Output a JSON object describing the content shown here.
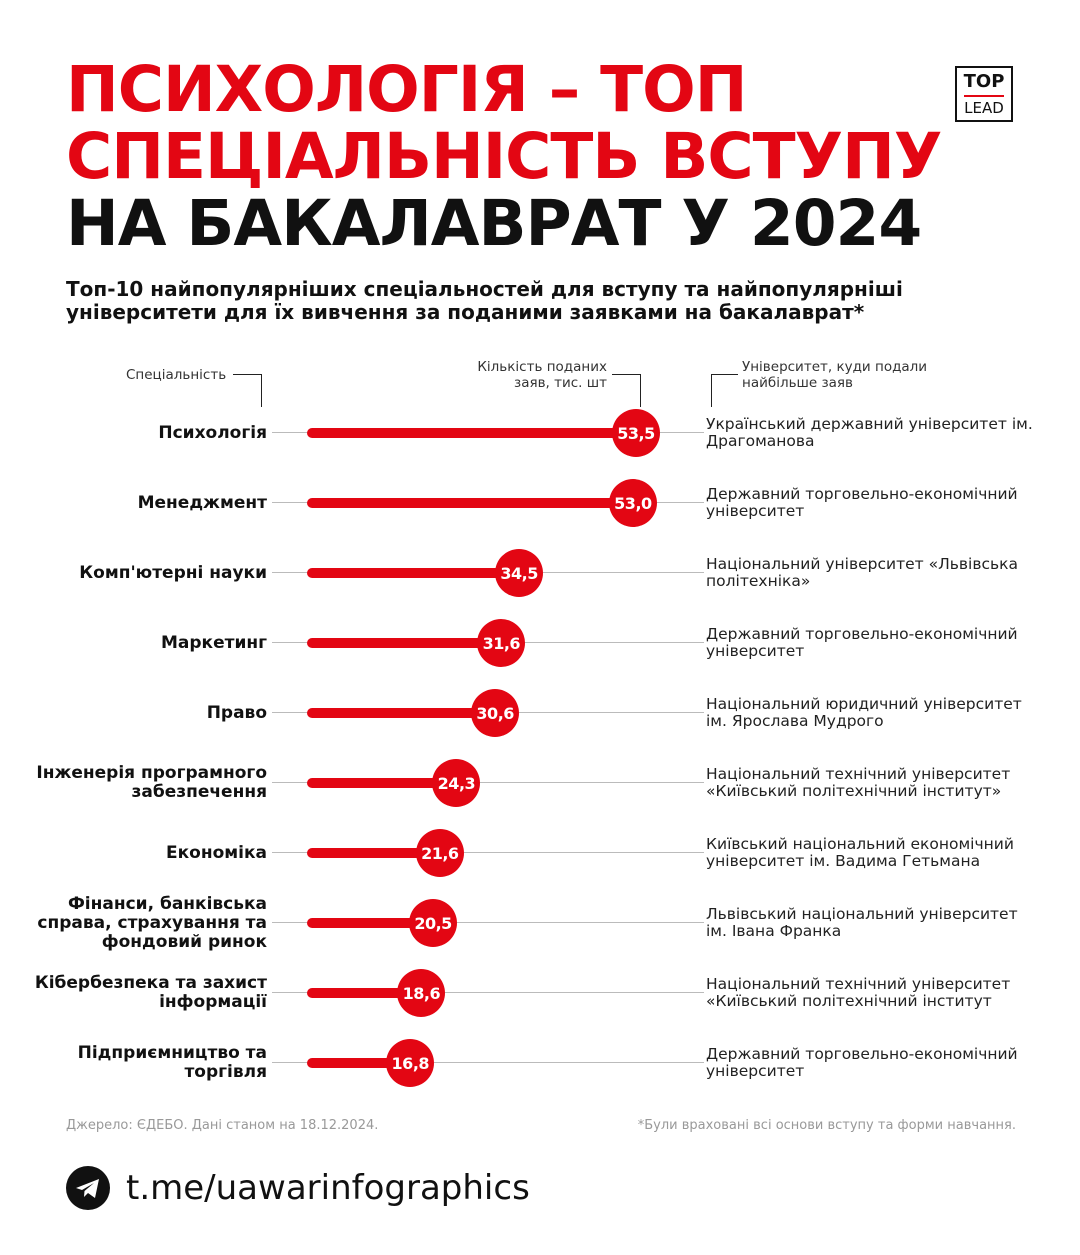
{
  "title": {
    "line1": "ПСИХОЛОГІЯ – ТОП",
    "line2": "СПЕЦІАЛЬНІСТЬ ВСТУПУ",
    "line3": "НА БАКАЛАВРАТ У 2024"
  },
  "logo": {
    "top": "TOP",
    "bottom": "LEAD"
  },
  "subtitle": "Топ-10 найпопулярніших спеціальностей для вступу та найпопулярніші університети для їх вивчення за поданими заявками на бакалаврат*",
  "headers": {
    "specialty": "Спеціальність",
    "count": "Кількість поданих заяв, тис. шт",
    "university": "Університет, куди подали найбільше заяв"
  },
  "chart_data": {
    "type": "bar",
    "orientation": "horizontal",
    "title": "Топ-10 найпопулярніших спеціальностей для вступу та найпопулярніші університети для їх вивчення за поданими заявками на бакалаврат*",
    "xlabel": "Кількість поданих заяв, тис. шт",
    "ylabel": "Спеціальність",
    "xlim": [
      0,
      55
    ],
    "categories": [
      "Психологія",
      "Менеджмент",
      "Комп'ютерні науки",
      "Маркетинг",
      "Право",
      "Інженерія програмного забезпечення",
      "Економіка",
      "Фінанси, банківська справа, страхування та фондовий ринок",
      "Кібербезпека та захист інформації",
      "Підприємництво та торгівля"
    ],
    "values": [
      53.5,
      53.0,
      34.5,
      31.6,
      30.6,
      24.3,
      21.6,
      20.5,
      18.6,
      16.8
    ],
    "value_labels": [
      "53,5",
      "53,0",
      "34,5",
      "31,6",
      "30,6",
      "24,3",
      "21,6",
      "20,5",
      "18,6",
      "16,8"
    ],
    "universities": [
      "Український державний університет ім. Драгоманова",
      "Державний торговельно-економічний університет",
      "Національний університет «Львівська політехніка»",
      "Державний торговельно-економічний університет",
      "Національний юридичний університет ім. Ярослава Мудрого",
      "Національний технічний університет «Київський політехнічний інститут»",
      "Київський національний економічний університет ім. Вадима Гетьмана",
      "Львівський національний університет ім. Івана Франка",
      "Національний технічний університет «Київський політехнічний інститут",
      "Державний торговельно-економічний університет"
    ]
  },
  "colors": {
    "accent": "#e30613",
    "text": "#111111",
    "muted": "#999999"
  },
  "footer": {
    "source": "Джерело: ЄДЕБО. Дані станом на 18.12.2024.",
    "note": "*Були враховані всі основи вступу та форми навчання.",
    "icon": "telegram-icon",
    "link": "t.me/uawarinfographics"
  }
}
